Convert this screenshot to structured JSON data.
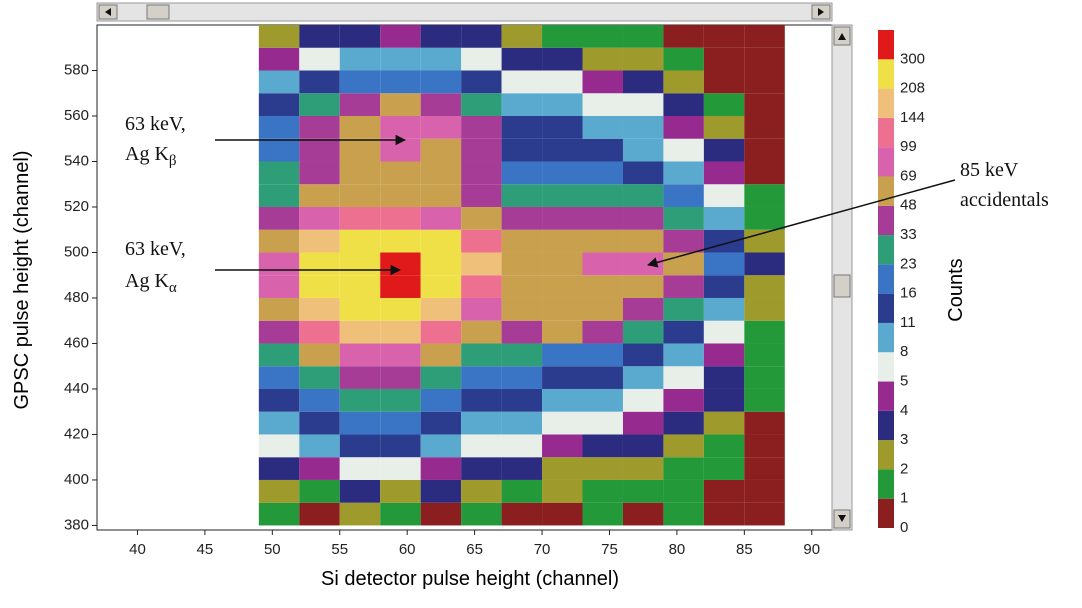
{
  "chart_data": {
    "type": "heatmap",
    "x_label": "Si detector pulse height (channel)",
    "y_label": "GPSC pulse height (channel)",
    "colorbar_label": "Counts",
    "xlim": [
      37,
      91.5
    ],
    "xticks": [
      40,
      45,
      50,
      55,
      60,
      65,
      70,
      75,
      80,
      85,
      90
    ],
    "ylim": [
      378,
      600
    ],
    "yticks": [
      380,
      400,
      420,
      440,
      460,
      480,
      500,
      520,
      540,
      560,
      580
    ],
    "xbins": [
      49,
      52,
      55,
      58,
      61,
      64,
      67,
      70,
      73,
      76,
      79,
      82,
      85,
      88
    ],
    "ybins": [
      380,
      390,
      400,
      410,
      420,
      430,
      440,
      450,
      460,
      470,
      480,
      490,
      500,
      510,
      520,
      530,
      540,
      550,
      560,
      570,
      580,
      590,
      600
    ],
    "z": [
      [
        1,
        0,
        2,
        1,
        0,
        1,
        0,
        0,
        1,
        0,
        1,
        0,
        0
      ],
      [
        2,
        1,
        3,
        2,
        3,
        2,
        1,
        2,
        1,
        1,
        1,
        0,
        0
      ],
      [
        3,
        4,
        5,
        5,
        4,
        3,
        3,
        2,
        2,
        2,
        1,
        1,
        0
      ],
      [
        5,
        8,
        11,
        11,
        8,
        5,
        5,
        4,
        3,
        3,
        2,
        1,
        0
      ],
      [
        8,
        11,
        16,
        16,
        11,
        8,
        8,
        5,
        5,
        4,
        3,
        2,
        0
      ],
      [
        11,
        16,
        23,
        23,
        16,
        11,
        11,
        8,
        8,
        5,
        4,
        3,
        1
      ],
      [
        16,
        23,
        33,
        33,
        23,
        16,
        16,
        11,
        11,
        8,
        5,
        3,
        1
      ],
      [
        23,
        48,
        69,
        69,
        48,
        23,
        23,
        16,
        16,
        11,
        8,
        4,
        1
      ],
      [
        33,
        99,
        144,
        144,
        99,
        48,
        33,
        48,
        33,
        23,
        11,
        5,
        1
      ],
      [
        48,
        144,
        208,
        208,
        144,
        69,
        48,
        48,
        48,
        33,
        23,
        8,
        2
      ],
      [
        69,
        208,
        250,
        300,
        208,
        99,
        48,
        48,
        48,
        48,
        33,
        11,
        2
      ],
      [
        69,
        208,
        250,
        300,
        208,
        144,
        48,
        48,
        69,
        69,
        48,
        16,
        3
      ],
      [
        48,
        144,
        208,
        250,
        208,
        99,
        48,
        48,
        48,
        48,
        33,
        11,
        2
      ],
      [
        33,
        69,
        99,
        99,
        69,
        48,
        33,
        33,
        33,
        33,
        23,
        8,
        1
      ],
      [
        23,
        48,
        48,
        48,
        48,
        33,
        23,
        23,
        23,
        23,
        16,
        5,
        1
      ],
      [
        23,
        33,
        48,
        48,
        48,
        33,
        16,
        16,
        16,
        11,
        8,
        4,
        0
      ],
      [
        16,
        33,
        48,
        69,
        48,
        33,
        11,
        11,
        11,
        8,
        5,
        3,
        0
      ],
      [
        16,
        33,
        48,
        69,
        69,
        33,
        11,
        11,
        8,
        8,
        4,
        2,
        0
      ],
      [
        11,
        23,
        33,
        48,
        33,
        23,
        8,
        8,
        5,
        5,
        3,
        1,
        0
      ],
      [
        8,
        11,
        16,
        16,
        16,
        11,
        5,
        5,
        4,
        3,
        2,
        0,
        0
      ],
      [
        4,
        5,
        8,
        8,
        8,
        5,
        3,
        3,
        2,
        2,
        1,
        0,
        0
      ],
      [
        2,
        3,
        3,
        4,
        3,
        3,
        2,
        1,
        1,
        1,
        0,
        0,
        0
      ]
    ],
    "colorscale": {
      "levels": [
        0,
        1,
        2,
        3,
        4,
        5,
        8,
        11,
        16,
        23,
        33,
        48,
        69,
        99,
        144,
        208,
        300
      ],
      "colors": [
        "#8b1e1e",
        "#23993a",
        "#9e9a2c",
        "#2b2b80",
        "#962a8e",
        "#e8eee8",
        "#5aaad0",
        "#2b3c8e",
        "#3a74c4",
        "#2e9e78",
        "#a63c96",
        "#c8a04e",
        "#d862ac",
        "#ee7090",
        "#eec07a",
        "#f0e048",
        "#e01a1a"
      ]
    },
    "annotations": [
      {
        "lines": [
          "63 keV,",
          "Ag K"
        ],
        "subscript": "β"
      },
      {
        "lines": [
          "63 keV,",
          "Ag K"
        ],
        "subscript": "α"
      },
      {
        "lines": [
          "85 keV",
          "accidentals"
        ]
      }
    ]
  }
}
